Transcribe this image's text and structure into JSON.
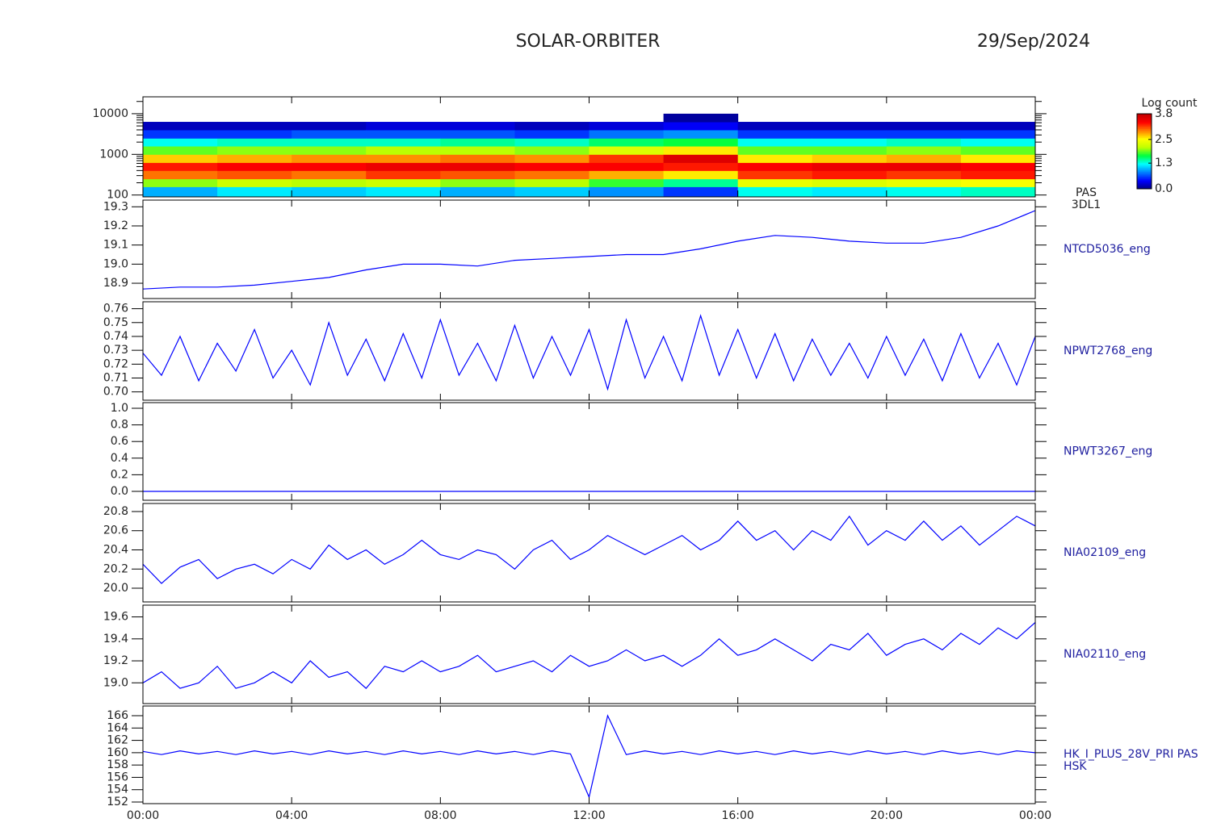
{
  "title": "SOLAR-ORBITER",
  "date": "29/Sep/2024",
  "chart_data": [
    {
      "type": "heatmap",
      "log": true,
      "ylim": [
        90,
        26000
      ],
      "yticks": [
        100,
        1000,
        10000
      ],
      "label_lines": [
        "PAS",
        "3DL1"
      ],
      "x": [
        0,
        2,
        4,
        6,
        8,
        10,
        12,
        14,
        16,
        18,
        20,
        22,
        24
      ],
      "y_edges": [
        90,
        160,
        250,
        400,
        630,
        1000,
        1600,
        2500,
        4000,
        6300,
        10000
      ],
      "z": [
        [
          1.0,
          2.0,
          3.0,
          3.3,
          2.7,
          1.9,
          1.3,
          0.6,
          0.2,
          null
        ],
        [
          1.2,
          2.2,
          3.1,
          3.4,
          2.8,
          2.0,
          1.4,
          0.6,
          0.2,
          null
        ],
        [
          1.1,
          2.1,
          3.0,
          3.4,
          2.9,
          2.0,
          1.4,
          0.7,
          0.2,
          null
        ],
        [
          1.2,
          2.2,
          3.2,
          3.5,
          2.9,
          2.1,
          1.4,
          0.7,
          0.3,
          null
        ],
        [
          1.0,
          2.0,
          3.1,
          3.5,
          3.0,
          2.1,
          1.5,
          0.7,
          0.3,
          null
        ],
        [
          1.1,
          2.1,
          3.0,
          3.4,
          2.9,
          2.0,
          1.4,
          0.6,
          0.2,
          null
        ],
        [
          0.9,
          1.8,
          2.8,
          3.4,
          3.2,
          2.3,
          1.6,
          0.8,
          0.3,
          null
        ],
        [
          0.6,
          1.5,
          2.6,
          3.3,
          3.6,
          2.6,
          1.7,
          0.9,
          0.4,
          0.1
        ],
        [
          1.3,
          2.4,
          3.2,
          3.4,
          2.6,
          1.9,
          1.3,
          0.6,
          0.2,
          null
        ],
        [
          1.2,
          2.3,
          3.3,
          3.5,
          2.7,
          1.9,
          1.3,
          0.6,
          0.2,
          null
        ],
        [
          1.3,
          2.4,
          3.2,
          3.5,
          2.8,
          2.0,
          1.4,
          0.6,
          0.2,
          null
        ],
        [
          1.4,
          2.5,
          3.3,
          3.4,
          2.6,
          1.9,
          1.3,
          0.6,
          0.2,
          null
        ]
      ],
      "zlim": [
        0,
        3.8
      ],
      "colorbar_title": "Log count",
      "zticks": [
        {
          "value": 0,
          "label": "0.0"
        },
        1.3,
        2.5,
        3.8
      ],
      "colormap": [
        "#000080",
        "#0000ff",
        "#0080ff",
        "#00ffff",
        "#00ff40",
        "#c0ff00",
        "#ffff00",
        "#ff8000",
        "#ff0000",
        "#c00000"
      ]
    },
    {
      "type": "line",
      "color": "#0000ff",
      "label_lines": [
        "NTCD5036_eng"
      ],
      "ylim": [
        18.82,
        19.335
      ],
      "yticks": [
        18.9,
        {
          "value": 19,
          "label": "19.0"
        },
        19.1,
        19.2,
        19.3
      ],
      "x": [
        0,
        1,
        2,
        3,
        4,
        5,
        6,
        7,
        8,
        9,
        10,
        11,
        12,
        13,
        14,
        15,
        16,
        17,
        18,
        19,
        20,
        21,
        22,
        23,
        24
      ],
      "values": [
        18.87,
        18.88,
        18.88,
        18.89,
        18.91,
        18.93,
        18.97,
        19.0,
        19.0,
        18.99,
        19.02,
        19.03,
        19.04,
        19.05,
        19.05,
        19.08,
        19.12,
        19.15,
        19.14,
        19.12,
        19.11,
        19.11,
        19.14,
        19.2,
        19.28
      ]
    },
    {
      "type": "line",
      "color": "#0000ff",
      "label_lines": [
        "NPWT2768_eng"
      ],
      "ylim": [
        0.694,
        0.765
      ],
      "yticks": [
        {
          "value": 0.7,
          "label": "0.70"
        },
        0.71,
        0.72,
        0.73,
        0.74,
        0.75,
        0.76
      ],
      "x": [
        0,
        0.5,
        1,
        1.5,
        2,
        2.5,
        3,
        3.5,
        4,
        4.5,
        5,
        5.5,
        6,
        6.5,
        7,
        7.5,
        8,
        8.5,
        9,
        9.5,
        10,
        10.5,
        11,
        11.5,
        12,
        12.5,
        13,
        13.5,
        14,
        14.5,
        15,
        15.5,
        16,
        16.5,
        17,
        17.5,
        18,
        18.5,
        19,
        19.5,
        20,
        20.5,
        21,
        21.5,
        22,
        22.5,
        23,
        23.5,
        24
      ],
      "values": [
        0.728,
        0.712,
        0.74,
        0.708,
        0.735,
        0.715,
        0.745,
        0.71,
        0.73,
        0.705,
        0.75,
        0.712,
        0.738,
        0.708,
        0.742,
        0.71,
        0.752,
        0.712,
        0.735,
        0.708,
        0.748,
        0.71,
        0.74,
        0.712,
        0.745,
        0.702,
        0.752,
        0.71,
        0.74,
        0.708,
        0.755,
        0.712,
        0.745,
        0.71,
        0.742,
        0.708,
        0.738,
        0.712,
        0.735,
        0.71,
        0.74,
        0.712,
        0.738,
        0.708,
        0.742,
        0.71,
        0.735,
        0.705,
        0.74
      ]
    },
    {
      "type": "line",
      "color": "#0000ff",
      "label_lines": [
        "NPWT3267_eng"
      ],
      "ylim": [
        -0.107,
        1.068
      ],
      "yticks": [
        {
          "value": 0,
          "label": "0.0"
        },
        0.2,
        0.4,
        0.6,
        0.8,
        {
          "value": 1,
          "label": "1.0"
        }
      ],
      "x": [
        0,
        1,
        2,
        3,
        4,
        5,
        6,
        7,
        8,
        9,
        10,
        11,
        12,
        13,
        14,
        15,
        16,
        17,
        18,
        19,
        20,
        21,
        22,
        23,
        24
      ],
      "values": [
        0,
        0,
        0,
        0,
        0,
        0,
        0,
        0,
        0,
        0,
        0,
        0,
        0,
        0,
        0,
        0,
        0,
        0,
        0,
        0,
        0,
        0,
        0,
        0,
        0
      ]
    },
    {
      "type": "line",
      "color": "#0000ff",
      "label_lines": [
        "NIA02109_eng"
      ],
      "ylim": [
        19.857,
        20.884
      ],
      "yticks": [
        {
          "value": 20,
          "label": "20.0"
        },
        20.2,
        20.4,
        20.6,
        20.8
      ],
      "x": [
        0,
        0.5,
        1,
        1.5,
        2,
        2.5,
        3,
        3.5,
        4,
        4.5,
        5,
        5.5,
        6,
        6.5,
        7,
        7.5,
        8,
        8.5,
        9,
        9.5,
        10,
        10.5,
        11,
        11.5,
        12,
        12.5,
        13,
        13.5,
        14,
        14.5,
        15,
        15.5,
        16,
        16.5,
        17,
        17.5,
        18,
        18.5,
        19,
        19.5,
        20,
        20.5,
        21,
        21.5,
        22,
        22.5,
        23,
        23.5,
        24
      ],
      "values": [
        20.25,
        20.05,
        20.22,
        20.3,
        20.1,
        20.2,
        20.25,
        20.15,
        20.3,
        20.2,
        20.45,
        20.3,
        20.4,
        20.25,
        20.35,
        20.5,
        20.35,
        20.3,
        20.4,
        20.35,
        20.2,
        20.4,
        20.5,
        20.3,
        20.4,
        20.55,
        20.45,
        20.35,
        20.45,
        20.55,
        20.4,
        20.5,
        20.7,
        20.5,
        20.6,
        20.4,
        20.6,
        20.5,
        20.75,
        20.45,
        20.6,
        20.5,
        20.7,
        20.5,
        20.65,
        20.45,
        20.6,
        20.75,
        20.65
      ]
    },
    {
      "type": "line",
      "color": "#0000ff",
      "label_lines": [
        "NIA02110_eng"
      ],
      "ylim": [
        18.811,
        19.707
      ],
      "yticks": [
        {
          "value": 19,
          "label": "19.0"
        },
        19.2,
        19.4,
        19.6
      ],
      "x": [
        0,
        0.5,
        1,
        1.5,
        2,
        2.5,
        3,
        3.5,
        4,
        4.5,
        5,
        5.5,
        6,
        6.5,
        7,
        7.5,
        8,
        8.5,
        9,
        9.5,
        10,
        10.5,
        11,
        11.5,
        12,
        12.5,
        13,
        13.5,
        14,
        14.5,
        15,
        15.5,
        16,
        16.5,
        17,
        17.5,
        18,
        18.5,
        19,
        19.5,
        20,
        20.5,
        21,
        21.5,
        22,
        22.5,
        23,
        23.5,
        24
      ],
      "values": [
        19.0,
        19.1,
        18.95,
        19.0,
        19.15,
        18.95,
        19.0,
        19.1,
        19.0,
        19.2,
        19.05,
        19.1,
        18.95,
        19.15,
        19.1,
        19.2,
        19.1,
        19.15,
        19.25,
        19.1,
        19.15,
        19.2,
        19.1,
        19.25,
        19.15,
        19.2,
        19.3,
        19.2,
        19.25,
        19.15,
        19.25,
        19.4,
        19.25,
        19.3,
        19.4,
        19.3,
        19.2,
        19.35,
        19.3,
        19.45,
        19.25,
        19.35,
        19.4,
        19.3,
        19.45,
        19.35,
        19.5,
        19.4,
        19.55
      ]
    },
    {
      "type": "line",
      "color": "#0000ff",
      "label_lines": [
        "HK_I_PLUS_28V_PRI PAS",
        "HSK"
      ],
      "ylim": [
        151.74,
        167.57
      ],
      "yticks": [
        152,
        154,
        156,
        158,
        160,
        162,
        164,
        166
      ],
      "xlim": [
        0,
        24
      ],
      "xticks": [
        {
          "value": 0,
          "label": "00:00"
        },
        {
          "value": 4,
          "label": "04:00"
        },
        {
          "value": 8,
          "label": "08:00"
        },
        {
          "value": 12,
          "label": "12:00"
        },
        {
          "value": 16,
          "label": "16:00"
        },
        {
          "value": 20,
          "label": "20:00"
        },
        {
          "value": 24,
          "label": "00:00"
        }
      ],
      "x": [
        0,
        0.5,
        1,
        1.5,
        2,
        2.5,
        3,
        3.5,
        4,
        4.5,
        5,
        5.5,
        6,
        6.5,
        7,
        7.5,
        8,
        8.5,
        9,
        9.5,
        10,
        10.5,
        11,
        11.5,
        12,
        12.5,
        13,
        13.5,
        14,
        14.5,
        15,
        15.5,
        16,
        16.5,
        17,
        17.5,
        18,
        18.5,
        19,
        19.5,
        20,
        20.5,
        21,
        21.5,
        22,
        22.5,
        23,
        23.5,
        24
      ],
      "values": [
        160.2,
        159.7,
        160.3,
        159.8,
        160.2,
        159.7,
        160.3,
        159.8,
        160.2,
        159.7,
        160.3,
        159.8,
        160.2,
        159.7,
        160.3,
        159.8,
        160.2,
        159.7,
        160.3,
        159.8,
        160.2,
        159.7,
        160.3,
        159.8,
        152.8,
        166.0,
        159.7,
        160.3,
        159.8,
        160.2,
        159.7,
        160.3,
        159.8,
        160.2,
        159.7,
        160.3,
        159.8,
        160.2,
        159.7,
        160.3,
        159.8,
        160.2,
        159.7,
        160.3,
        159.8,
        160.2,
        159.7,
        160.3,
        160.0
      ]
    }
  ]
}
